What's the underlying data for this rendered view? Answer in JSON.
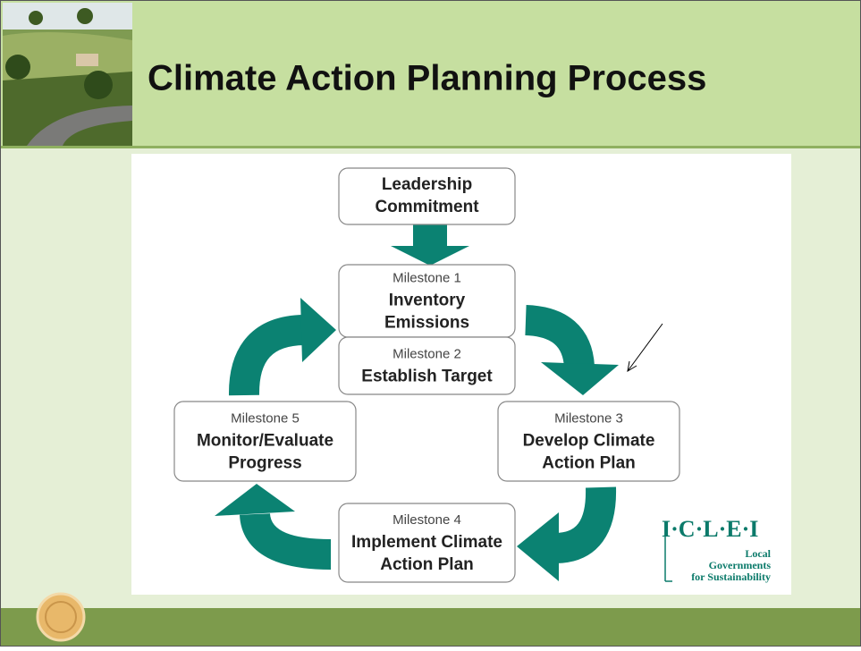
{
  "header": {
    "title": "Climate Action Planning Process"
  },
  "diagram": {
    "start": {
      "title_lines": [
        "Leadership",
        "Commitment"
      ]
    },
    "milestones": [
      {
        "label": "Milestone 1",
        "title_lines": [
          "Inventory",
          "Emissions"
        ]
      },
      {
        "label": "Milestone 2",
        "title_lines": [
          "Establish Target"
        ]
      },
      {
        "label": "Milestone 3",
        "title_lines": [
          "Develop Climate",
          "Action Plan"
        ]
      },
      {
        "label": "Milestone 4",
        "title_lines": [
          "Implement Climate",
          "Action Plan"
        ]
      },
      {
        "label": "Milestone 5",
        "title_lines": [
          "Monitor/Evaluate",
          "Progress"
        ]
      }
    ]
  },
  "logo": {
    "name": "I·C·L·E·I",
    "lines": [
      "Local",
      "Governments",
      "for Sustainability"
    ]
  }
}
